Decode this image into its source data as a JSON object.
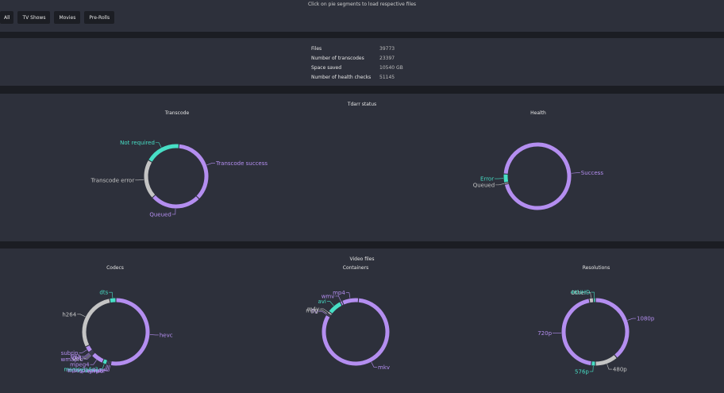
{
  "hint": "Click on pie segments to load respective files",
  "filters": [
    "All",
    "TV Shows",
    "Movies",
    "Pre-Rolls"
  ],
  "stats": [
    {
      "label": "Files",
      "value": "39773"
    },
    {
      "label": "Number of transcodes",
      "value": "23397"
    },
    {
      "label": "Space saved",
      "value": "10540 GB"
    },
    {
      "label": "Number of health checks",
      "value": "51145"
    }
  ],
  "status_section": {
    "title": "Tdarr status",
    "transcode_title": "Transcode",
    "health_title": "Health"
  },
  "video_section": {
    "title": "Video files",
    "codecs_title": "Codecs",
    "containers_title": "Containers",
    "resolutions_title": "Resolutions"
  },
  "colors": {
    "purple": "#b48ef0",
    "teal": "#47dec5",
    "gray": "#c4c4c4",
    "panel": "#2d303b",
    "background": "#1b1d23"
  },
  "chart_data": [
    {
      "type": "pie",
      "title": "Transcode",
      "slices": [
        {
          "label": "Transcode success",
          "value": 36,
          "color": "#b48ef0"
        },
        {
          "label": "Queued",
          "value": 26,
          "color": "#b48ef0"
        },
        {
          "label": "Transcode error",
          "value": 20,
          "color": "#c4c4c4"
        },
        {
          "label": "Not required",
          "value": 18,
          "color": "#47dec5"
        }
      ]
    },
    {
      "type": "pie",
      "title": "Health",
      "slices": [
        {
          "label": "Success",
          "value": 95,
          "color": "#b48ef0"
        },
        {
          "label": "Queued",
          "value": 0.8,
          "color": "#c4c4c4"
        },
        {
          "label": "Error",
          "value": 4.2,
          "color": "#47dec5"
        }
      ]
    },
    {
      "type": "pie",
      "title": "Codecs",
      "slices": [
        {
          "label": "hevc",
          "value": 52,
          "color": "#b48ef0"
        },
        {
          "label": "vp6f",
          "value": 0.5,
          "color": "#b48ef0"
        },
        {
          "label": "wmv3",
          "value": 0.5,
          "color": "#b48ef0"
        },
        {
          "label": "msmpeg4v2",
          "value": 0.5,
          "color": "#b48ef0"
        },
        {
          "label": "mpeg1video",
          "value": 0.5,
          "color": "#b48ef0"
        },
        {
          "label": "msmpeg4v3",
          "value": 2,
          "color": "#47dec5"
        },
        {
          "label": "mpeg4",
          "value": 6,
          "color": "#b48ef0"
        },
        {
          "label": "wmapro",
          "value": 0.5,
          "color": "#b48ef0"
        },
        {
          "label": "vc1",
          "value": 0.5,
          "color": "#c4c4c4"
        },
        {
          "label": "vp8",
          "value": 0.5,
          "color": "#b48ef0"
        },
        {
          "label": "flv1",
          "value": 0.5,
          "color": "#b48ef0"
        },
        {
          "label": "subrip",
          "value": 3,
          "color": "#b48ef0"
        },
        {
          "label": "h264",
          "value": 29,
          "color": "#c4c4c4"
        },
        {
          "label": "dts",
          "value": 3,
          "color": "#47dec5"
        }
      ]
    },
    {
      "type": "pie",
      "title": "Containers",
      "slices": [
        {
          "label": "mkv",
          "value": 82,
          "color": "#b48ef0"
        },
        {
          "label": "flv",
          "value": 0.5,
          "color": "#b48ef0"
        },
        {
          "label": "mpg",
          "value": 0.5,
          "color": "#c4c4c4"
        },
        {
          "label": "m4v",
          "value": 1,
          "color": "#c4c4c4"
        },
        {
          "label": "avi",
          "value": 7,
          "color": "#47dec5"
        },
        {
          "label": "wmv",
          "value": 1,
          "color": "#b48ef0"
        },
        {
          "label": "mp4",
          "value": 8,
          "color": "#b48ef0"
        }
      ]
    },
    {
      "type": "pie",
      "title": "Resolutions",
      "slices": [
        {
          "label": "1080p",
          "value": 39,
          "color": "#b48ef0"
        },
        {
          "label": "480p",
          "value": 11,
          "color": "#c4c4c4"
        },
        {
          "label": "576p",
          "value": 2,
          "color": "#47dec5"
        },
        {
          "label": "720p",
          "value": 45,
          "color": "#b48ef0"
        },
        {
          "label": "Other",
          "value": 2,
          "color": "#c4c4c4"
        },
        {
          "label": "4KUHD",
          "value": 1,
          "color": "#47dec5"
        }
      ]
    }
  ]
}
